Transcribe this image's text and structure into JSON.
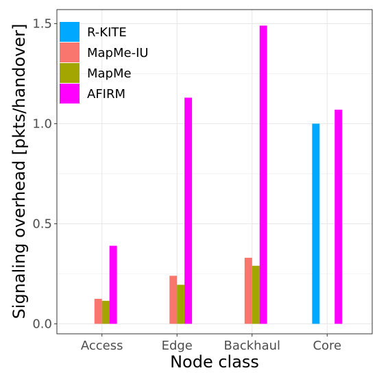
{
  "chart_data": {
    "type": "bar",
    "title": "",
    "xlabel": "Node class",
    "ylabel": "Signaling overhead [pkts/handover]",
    "categories": [
      "Access",
      "Edge",
      "Backhaul",
      "Core"
    ],
    "series": [
      {
        "name": "R-KITE",
        "color": "#00a9ff",
        "values": [
          0,
          0,
          0,
          1.0
        ]
      },
      {
        "name": "MapMe-IU",
        "color": "#f8766d",
        "values": [
          0.125,
          0.24,
          0.33,
          0
        ]
      },
      {
        "name": "MapMe",
        "color": "#a3a500",
        "values": [
          0.115,
          0.195,
          0.29,
          0
        ]
      },
      {
        "name": "AFIRM",
        "color": "#ff00ff",
        "values": [
          0.39,
          1.13,
          1.49,
          1.07
        ]
      }
    ],
    "ylim": [
      -0.05,
      1.57
    ],
    "yticks": [
      0.0,
      0.5,
      1.0,
      1.5
    ],
    "ytick_labels": [
      "0.0",
      "0.5",
      "1.0",
      "1.5"
    ],
    "grid": true,
    "legend_position": "top-left"
  }
}
